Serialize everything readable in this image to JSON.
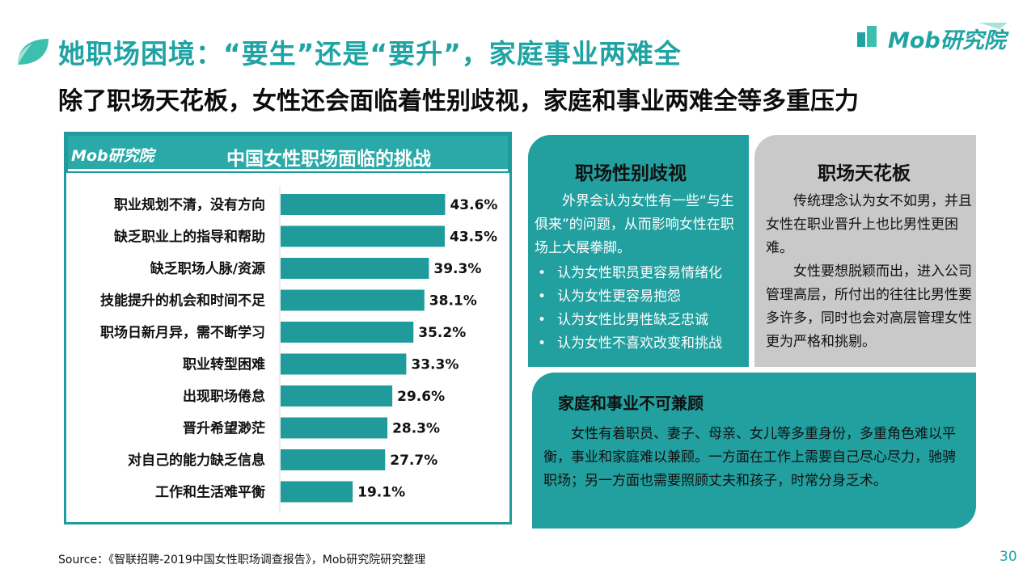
{
  "header": {
    "title": "她职场困境：“要生”还是“要升”，家庭事业两难全",
    "subtitle": "除了职场天花板，女性还会面临着性别歧视，家庭和事业两难全等多重压力",
    "logo": "Mob研究院"
  },
  "colors": {
    "teal": "#1fa3a3",
    "bar": "#1f9b9b",
    "gray_card": "#c9c9c9"
  },
  "chart_panel": {
    "logo": "Mob研究院",
    "watermark": "Mob"
  },
  "chart_data": {
    "type": "bar",
    "orientation": "horizontal",
    "title": "中国女性职场面临的挑战",
    "categories": [
      "职业规划不清，没有方向",
      "缺乏职业上的指导和帮助",
      "缺乏职场人脉/资源",
      "技能提升的机会和时间不足",
      "职场日新月异，需不断学习",
      "职业转型困难",
      "出现职场倦怠",
      "晋升希望渺茫",
      "对自己的能力缺乏信息",
      "工作和生活难平衡"
    ],
    "values": [
      43.6,
      43.5,
      39.3,
      38.1,
      35.2,
      33.3,
      29.6,
      28.3,
      27.7,
      19.1
    ],
    "value_labels": [
      "43.6%",
      "43.5%",
      "39.3%",
      "38.1%",
      "35.2%",
      "33.3%",
      "29.6%",
      "28.3%",
      "27.7%",
      "19.1%"
    ],
    "unit": "%",
    "xlim": [
      0,
      45
    ],
    "grid": false,
    "legend": "none"
  },
  "cards": {
    "discrimination": {
      "title": "职场性别歧视",
      "intro": "外界会认为女性有一些“与生俱来”的问题，从而影响女性在职场上大展拳脚。",
      "bullets": [
        "认为女性职员更容易情绪化",
        "认为女性更容易抱怨",
        "认为女性比男性缺乏忠诚",
        "认为女性不喜欢改变和挑战"
      ]
    },
    "ceiling": {
      "title": "职场天花板",
      "para1": "传统理念认为女不如男，并且女性在职业晋升上也比男性更困难。",
      "para2": "女性要想脱颖而出，进入公司管理高层，所付出的往往比男性要多许多，同时也会对高层管理女性更为严格和挑剔。"
    },
    "family": {
      "title": "家庭和事业不可兼顾",
      "body": "女性有着职员、妻子、母亲、女儿等多重身份，多重角色难以平衡，事业和家庭难以兼顾。一方面在工作上需要自己尽心尽力，驰骋职场；另一方面也需要照顾丈夫和孩子，时常分身乏术。"
    }
  },
  "footer": {
    "source": "Source：《智联招聘-2019中国女性职场调查报告》，Mob研究院研究整理",
    "page": "30"
  }
}
